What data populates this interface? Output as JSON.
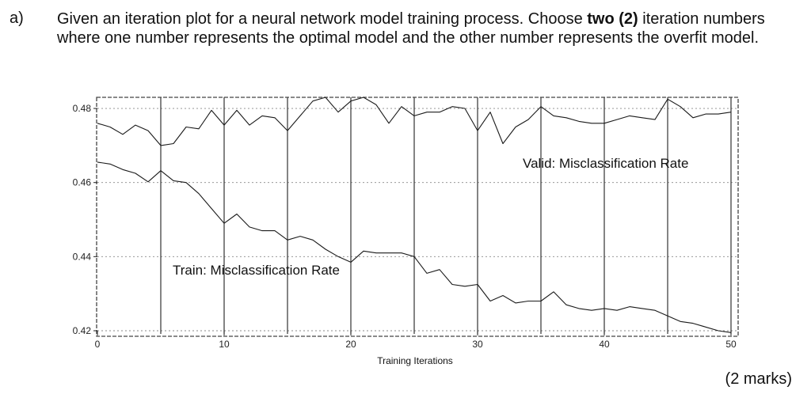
{
  "question": {
    "label": "a)",
    "text_before": "Given an iteration plot for a neural network model training process. Choose ",
    "text_bold": "two (2)",
    "text_after": " iteration numbers where one number represents the optimal model and the other number represents the overfit model.",
    "marks": "(2 marks)"
  },
  "chart_data": {
    "type": "line",
    "xlabel": "Training Iterations",
    "ylabel": "",
    "xlim": [
      0,
      50
    ],
    "ylim": [
      0.42,
      0.483
    ],
    "x_ticks": [
      0,
      10,
      20,
      30,
      40,
      50
    ],
    "y_ticks": [
      0.42,
      0.44,
      0.46,
      0.48
    ],
    "y_tick_labels": [
      "0.42",
      "0.44",
      "0.46",
      "0.48"
    ],
    "vertical_lines_at": [
      5,
      10,
      15,
      20,
      25,
      30,
      35,
      40,
      45,
      50
    ],
    "grid": true,
    "series": [
      {
        "name": "Valid: Misclassification Rate",
        "label_pos": "upper-right",
        "x": [
          0,
          1,
          2,
          3,
          4,
          5,
          6,
          7,
          8,
          9,
          10,
          11,
          12,
          13,
          14,
          15,
          16,
          17,
          18,
          19,
          20,
          21,
          22,
          23,
          24,
          25,
          26,
          27,
          28,
          29,
          30,
          31,
          32,
          33,
          34,
          35,
          36,
          37,
          38,
          39,
          40,
          41,
          42,
          43,
          44,
          45,
          46,
          47,
          48,
          49,
          50
        ],
        "values": [
          0.476,
          0.475,
          0.473,
          0.4755,
          0.474,
          0.47,
          0.4705,
          0.475,
          0.4745,
          0.4795,
          0.4755,
          0.4795,
          0.4755,
          0.478,
          0.4775,
          0.474,
          0.478,
          0.482,
          0.483,
          0.479,
          0.482,
          0.483,
          0.481,
          0.476,
          0.4805,
          0.478,
          0.479,
          0.479,
          0.4805,
          0.48,
          0.474,
          0.479,
          0.4705,
          0.475,
          0.477,
          0.4805,
          0.478,
          0.4775,
          0.4765,
          0.476,
          0.476,
          0.477,
          0.478,
          0.4775,
          0.477,
          0.4825,
          0.4805,
          0.4775,
          0.4785,
          0.4785,
          0.479
        ]
      },
      {
        "name": "Train: Misclassification Rate",
        "label_pos": "middle-left",
        "x": [
          0,
          1,
          2,
          3,
          4,
          5,
          6,
          7,
          8,
          9,
          10,
          11,
          12,
          13,
          14,
          15,
          16,
          17,
          18,
          19,
          20,
          21,
          22,
          23,
          24,
          25,
          26,
          27,
          28,
          29,
          30,
          31,
          32,
          33,
          34,
          35,
          36,
          37,
          38,
          39,
          40,
          41,
          42,
          43,
          44,
          45,
          46,
          47,
          48,
          49,
          50
        ],
        "values": [
          0.4655,
          0.465,
          0.4635,
          0.4625,
          0.4602,
          0.4632,
          0.4605,
          0.46,
          0.457,
          0.453,
          0.449,
          0.4515,
          0.448,
          0.447,
          0.447,
          0.4445,
          0.4455,
          0.4445,
          0.442,
          0.44,
          0.4385,
          0.4415,
          0.441,
          0.441,
          0.441,
          0.44,
          0.4355,
          0.4365,
          0.4325,
          0.432,
          0.4325,
          0.428,
          0.4295,
          0.4275,
          0.428,
          0.428,
          0.4305,
          0.427,
          0.426,
          0.4255,
          0.426,
          0.4255,
          0.4265,
          0.426,
          0.4255,
          0.424,
          0.4225,
          0.422,
          0.421,
          0.42,
          0.4195
        ]
      }
    ]
  }
}
